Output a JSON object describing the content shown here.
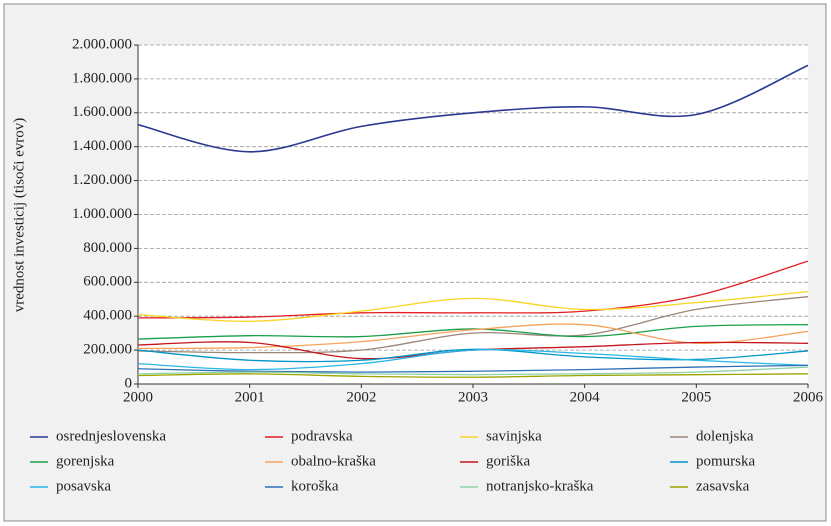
{
  "chart_data": {
    "type": "line",
    "y_label": "vrednost investicij (tisoči evrov)",
    "x": [
      2000,
      2001,
      2002,
      2003,
      2004,
      2005,
      2006
    ],
    "xlim": [
      2000,
      2006
    ],
    "xticks": [
      2000,
      2001,
      2002,
      2003,
      2004,
      2005,
      2006
    ],
    "ylim": [
      0,
      2000000
    ],
    "yticks": [
      0,
      {
        "value": 200000,
        "label": "200.000"
      },
      {
        "value": 400000,
        "label": "400.000"
      },
      {
        "value": 600000,
        "label": "600.000"
      },
      {
        "value": 800000,
        "label": "800.000"
      },
      {
        "value": 1000000,
        "label": "1.000.000"
      },
      {
        "value": 1200000,
        "label": "1.200.000"
      },
      {
        "value": 1400000,
        "label": "1.400.000"
      },
      {
        "value": 1600000,
        "label": "1.600.000"
      },
      {
        "value": 1800000,
        "label": "1.800.000"
      },
      {
        "value": 2000000,
        "label": "2.000.000"
      }
    ],
    "grid": true,
    "legend": "bottom",
    "series": [
      {
        "name": "osrednjeslovenska",
        "color": "#2b3990",
        "values": [
          1530000,
          1370000,
          1520000,
          1600000,
          1635000,
          1590000,
          1880000
        ]
      },
      {
        "name": "podravska",
        "color": "#e31e24",
        "values": [
          390000,
          395000,
          420000,
          420000,
          430000,
          520000,
          725000
        ]
      },
      {
        "name": "savinjska",
        "color": "#f9d423",
        "values": [
          410000,
          370000,
          430000,
          505000,
          440000,
          480000,
          545000
        ]
      },
      {
        "name": "dolenjska",
        "color": "#9b8579",
        "values": [
          195000,
          185000,
          200000,
          300000,
          290000,
          440000,
          515000
        ]
      },
      {
        "name": "gorenjska",
        "color": "#1a9e4a",
        "values": [
          265000,
          285000,
          280000,
          325000,
          280000,
          340000,
          350000
        ]
      },
      {
        "name": "obalno-kraška",
        "color": "#f7a35c",
        "values": [
          210000,
          215000,
          250000,
          320000,
          350000,
          240000,
          310000
        ]
      },
      {
        "name": "goriška",
        "color": "#c4161c",
        "values": [
          230000,
          245000,
          150000,
          200000,
          220000,
          245000,
          240000
        ]
      },
      {
        "name": "pomurska",
        "color": "#0094c9",
        "values": [
          200000,
          140000,
          140000,
          205000,
          160000,
          145000,
          195000
        ]
      },
      {
        "name": "posavska",
        "color": "#27b6e6",
        "values": [
          120000,
          85000,
          120000,
          200000,
          180000,
          140000,
          110000
        ]
      },
      {
        "name": "koroška",
        "color": "#2d6fb7",
        "values": [
          90000,
          75000,
          70000,
          75000,
          85000,
          100000,
          110000
        ]
      },
      {
        "name": "notranjsko-kraška",
        "color": "#8fd1a8",
        "values": [
          60000,
          70000,
          60000,
          55000,
          60000,
          70000,
          100000
        ]
      },
      {
        "name": "zasavska",
        "color": "#9ea400",
        "values": [
          50000,
          60000,
          45000,
          40000,
          50000,
          55000,
          60000
        ]
      }
    ]
  }
}
